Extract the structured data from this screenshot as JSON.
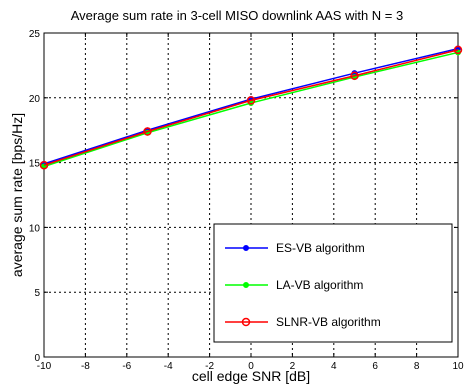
{
  "chart_data": {
    "type": "line",
    "title": "Average sum rate in 3-cell MISO downlink AAS with N = 3",
    "xlabel": "cell edge SNR [dB]",
    "ylabel": "average sum rate [bps/Hz]",
    "xlim": [
      -10,
      10
    ],
    "ylim": [
      0,
      25
    ],
    "xticks": [
      "-10",
      "-8",
      "-6",
      "-4",
      "-2",
      "0",
      "2",
      "4",
      "6",
      "8",
      "10"
    ],
    "yticks": [
      "0",
      "5",
      "10",
      "15",
      "20",
      "25"
    ],
    "grid": true,
    "legend_position": "bottom-right",
    "x": [
      -10,
      -5,
      0,
      5,
      10
    ],
    "series": [
      {
        "name": "ES-VB algorithm",
        "color": "#0000ff",
        "marker": "dot",
        "values": [
          14.9,
          17.5,
          19.9,
          21.9,
          23.8
        ]
      },
      {
        "name": "LA-VB algorithm",
        "color": "#00ff00",
        "marker": "dot",
        "values": [
          14.7,
          17.3,
          19.6,
          21.6,
          23.5
        ]
      },
      {
        "name": "SLNR-VB algorithm",
        "color": "#ff0000",
        "marker": "circle",
        "values": [
          14.8,
          17.4,
          19.8,
          21.7,
          23.7
        ]
      }
    ]
  }
}
